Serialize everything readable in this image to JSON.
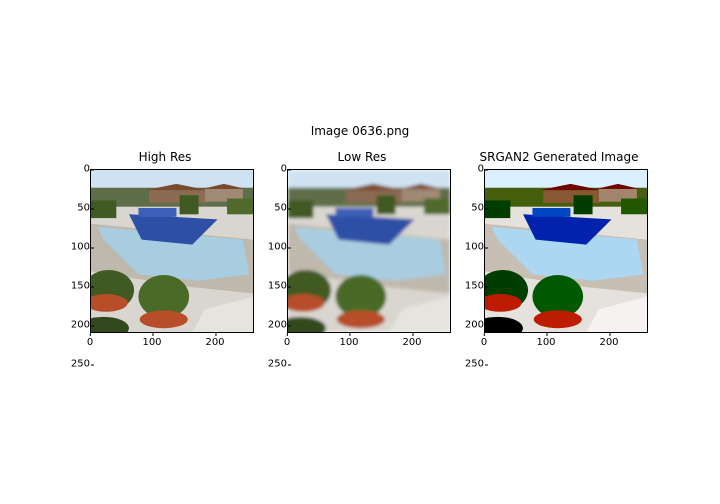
{
  "figure": {
    "title": "Image 0636.png",
    "panels": [
      {
        "title": "High Res",
        "style": "sharp"
      },
      {
        "title": "Low Res",
        "style": "blur"
      },
      {
        "title": "SRGAN2 Generated Image",
        "style": "contrast"
      }
    ],
    "yticks": [
      "0",
      "50",
      "100",
      "150",
      "200",
      "250"
    ],
    "xticks": [
      "0",
      "100",
      "200"
    ]
  },
  "colors": {
    "sky": "#cfe2f2",
    "pool_water": "#a9cde0",
    "pool_deep": "#2e4fa6",
    "deck": "#d9d6cf",
    "foliage": "#3f5a22",
    "pot": "#b84d2a",
    "roof": "#7a4a2e"
  }
}
